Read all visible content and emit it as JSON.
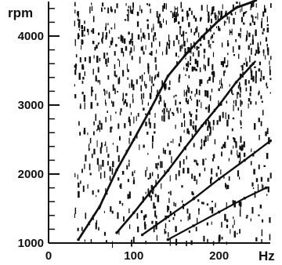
{
  "chart_data": {
    "type": "scatter",
    "title": "",
    "xlabel": "Hz",
    "ylabel": "rpm",
    "xlim": [
      0,
      260
    ],
    "ylim": [
      1000,
      4500
    ],
    "x_ticks": [
      {
        "value": 0,
        "label": "0"
      },
      {
        "value": 100,
        "label": "100"
      },
      {
        "value": 200,
        "label": "200"
      }
    ],
    "y_ticks": [
      {
        "value": 1000,
        "label": "1000"
      },
      {
        "value": 2000,
        "label": "2000"
      },
      {
        "value": 3000,
        "label": "3000"
      },
      {
        "value": 4000,
        "label": "4000"
      }
    ],
    "y_minor_step": 200,
    "grid": false,
    "background": "#ffffff",
    "ink": "#111111",
    "series": [
      {
        "x": [
          35,
          60,
          80,
          100,
          120,
          140,
          160,
          180,
          200,
          220,
          240
        ],
        "y": [
          1050,
          1530,
          2060,
          2500,
          2950,
          3420,
          3720,
          3990,
          4230,
          4410,
          4500
        ]
      },
      {
        "x": [
          80,
          100,
          120,
          140,
          160,
          180,
          200,
          220,
          240
        ],
        "y": [
          1150,
          1440,
          1750,
          2050,
          2380,
          2700,
          3000,
          3330,
          3600
        ]
      },
      {
        "x": [
          110,
          140,
          170,
          200,
          230,
          260
        ],
        "y": [
          1120,
          1380,
          1640,
          1930,
          2200,
          2480
        ]
      },
      {
        "x": [
          140,
          170,
          200,
          230,
          255
        ],
        "y": [
          1050,
          1250,
          1450,
          1650,
          1800
        ]
      }
    ]
  }
}
